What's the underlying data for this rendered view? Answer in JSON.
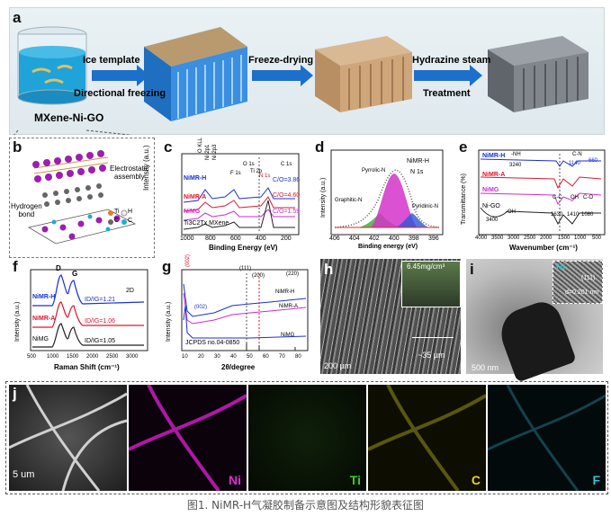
{
  "panels": {
    "a": {
      "label": "a",
      "beaker_label": "MXene-Ni-GO",
      "step1_top": "Ice template",
      "step1_bottom": "Directional freezing",
      "step2_top": "Freeze-drying",
      "step3_top": "Hydrazine steam",
      "step3_bottom": "Treatment"
    },
    "b": {
      "label": "b",
      "electrostatic": "Electrostatic\nassembly",
      "hbond": "Hydrogen\nbond",
      "legend": [
        "Ti",
        "H",
        "C",
        "O",
        "Ni",
        "C"
      ]
    },
    "c": {
      "label": "c",
      "ylabel": "Intensity (a.u.)",
      "xlabel": "Binding Energy (eV)",
      "xticks": [
        "1000",
        "800",
        "600",
        "400",
        "200"
      ],
      "peaks": [
        "O KLL",
        "Ni 2p1",
        "Ni 2p3",
        "F 1s",
        "O 1s",
        "Ti 2p",
        "N 1s",
        "C 1s"
      ],
      "series": [
        {
          "name": "NiMR-H",
          "ratio": "C/O=3.86",
          "color": "#1a2fd6"
        },
        {
          "name": "NiMR-A",
          "ratio": "C/O=4.60",
          "color": "#e0162b"
        },
        {
          "name": "NiMG",
          "ratio": "C/O=1.59",
          "color": "#d12ad1"
        },
        {
          "name": "Ti3C2Tx MXene",
          "ratio": "",
          "color": "#222222"
        }
      ]
    },
    "d": {
      "label": "d",
      "title1": "NiMR-H",
      "title2": "N 1s",
      "ylabel": "Intensity (a.u.)",
      "xlabel": "Binding energy (eV)",
      "xticks": [
        "406",
        "404",
        "402",
        "400",
        "398",
        "396"
      ],
      "components": [
        "Pyrrolic-N",
        "Graphitic-N",
        "Pyridinic-N"
      ]
    },
    "e": {
      "label": "e",
      "ylabel": "Transmittance (%)",
      "xlabel": "Wavenumber (cm⁻¹)",
      "xticks": [
        "4000",
        "3500",
        "3000",
        "2500",
        "2000",
        "1500",
        "1000",
        "500"
      ],
      "series": [
        "NiMR-H",
        "NiMR-A",
        "NiMG",
        "Ni-GO"
      ],
      "annotations": [
        "-NH",
        "3240",
        "C-N",
        "1140",
        "660",
        "C-C",
        "OH",
        "C-O",
        "1630",
        "1410",
        "1080",
        "3400",
        "-OH"
      ]
    },
    "f": {
      "label": "f",
      "ylabel": "Intensity (a.u.)",
      "xlabel": "Raman Shift (cm⁻¹)",
      "xticks": [
        "500",
        "1000",
        "1500",
        "2000",
        "2500",
        "3000"
      ],
      "peak_d": "D",
      "peak_g": "G",
      "peak_2d": "2D",
      "series": [
        {
          "name": "NiMR-H",
          "ratio": "I₂/I₁=1.21",
          "color": "#1a2fd6"
        },
        {
          "name": "NiMR-A",
          "ratio": "I₂/I₁=1.06",
          "color": "#e0162b"
        },
        {
          "name": "NiMG",
          "ratio": "I₂/I₁=1.05",
          "color": "#222222"
        }
      ],
      "ratio_labels": [
        "ID/IG=1.21",
        "ID/IG=1.06",
        "ID/IG=1.05"
      ]
    },
    "g": {
      "label": "g",
      "ylabel": "Intensity (a.u.)",
      "xlabel": "2θ/degree",
      "xticks": [
        "10",
        "20",
        "30",
        "40",
        "50",
        "60",
        "70",
        "80"
      ],
      "peaks": [
        "(002)",
        "(111)",
        "(200)",
        "(220)",
        "(002)"
      ],
      "series": [
        "NiMR-H",
        "NiMR-A",
        "NiMG"
      ],
      "jcpds": "JCPDS no.04-0850"
    },
    "h": {
      "label": "h",
      "density": "6.45mg/cm³",
      "scale": "200 µm",
      "spacing": "~35 µm"
    },
    "i": {
      "label": "i",
      "element": "Ni",
      "plane": "(111)",
      "d_spacing": "d=0.201 nm",
      "scale": "500 nm"
    },
    "j": {
      "label": "j",
      "scale": "5 um",
      "maps": [
        {
          "name": "Ni",
          "color": "#e22ad8"
        },
        {
          "name": "Ti",
          "color": "#39d11c"
        },
        {
          "name": "C",
          "color": "#e6d51f"
        },
        {
          "name": "F",
          "color": "#2bc6d6"
        }
      ]
    }
  },
  "caption": "图1. NiMR-H气凝胶制备示意图及结构形貌表征图"
}
